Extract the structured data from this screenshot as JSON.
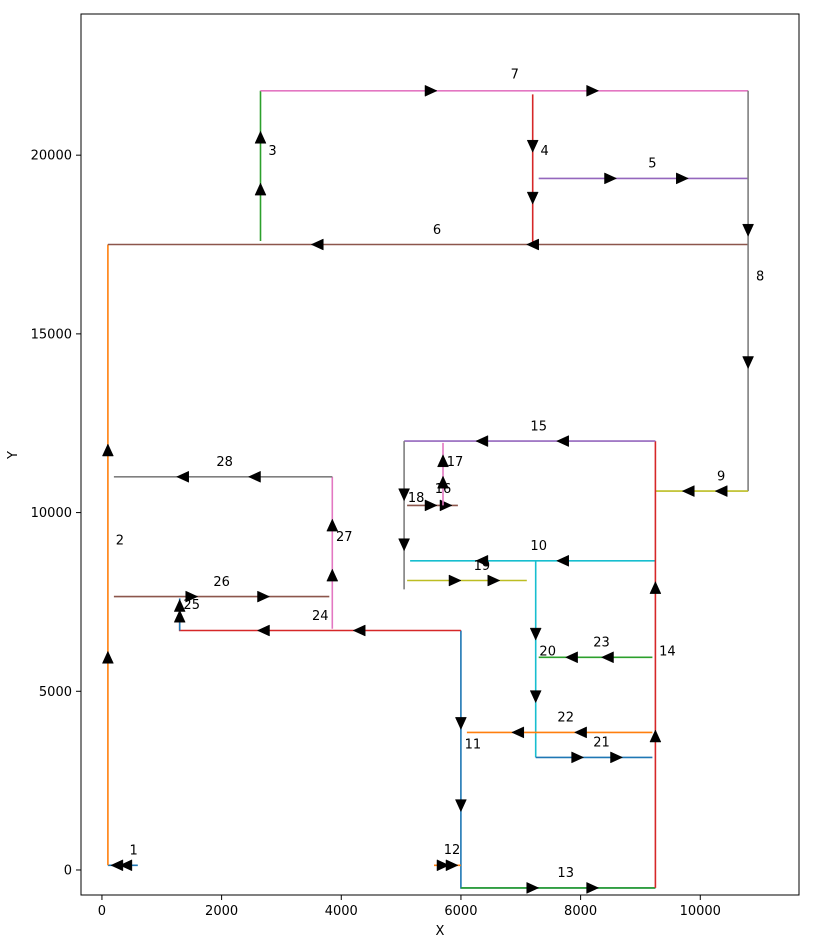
{
  "chart_data": {
    "type": "line",
    "title": "",
    "xlabel": "X",
    "ylabel": "Y",
    "xlim": [
      -350,
      11650
    ],
    "ylim": [
      -700,
      23950
    ],
    "xticks": [
      0,
      2000,
      4000,
      6000,
      8000,
      10000
    ],
    "xtick_labels": [
      "0",
      "2000",
      "4000",
      "6000",
      "8000",
      "10000"
    ],
    "yticks": [
      0,
      5000,
      10000,
      15000,
      20000
    ],
    "ytick_labels": [
      "0",
      "5000",
      "10000",
      "15000",
      "20000"
    ],
    "grid": false,
    "series": [
      {
        "name": "1",
        "color": "#1f77b4",
        "points": [
          [
            100,
            130
          ],
          [
            600,
            130
          ]
        ],
        "arrows": [
          [
            250,
            130,
            "left"
          ],
          [
            400,
            130,
            "left"
          ]
        ],
        "label_at": [
          530,
          430
        ]
      },
      {
        "name": "2",
        "color": "#ff7f0e",
        "points": [
          [
            100,
            130
          ],
          [
            100,
            17500
          ]
        ],
        "arrows": [
          [
            100,
            5950,
            "up"
          ],
          [
            100,
            11750,
            "up"
          ]
        ],
        "label_at": [
          300,
          9100
        ]
      },
      {
        "name": "3",
        "color": "#2ca02c",
        "points": [
          [
            2650,
            17600
          ],
          [
            2650,
            21800
          ]
        ],
        "arrows": [
          [
            2650,
            19050,
            "up"
          ],
          [
            2650,
            20500,
            "up"
          ]
        ],
        "label_at": [
          2850,
          20000
        ]
      },
      {
        "name": "4",
        "color": "#d62728",
        "points": [
          [
            7200,
            21700
          ],
          [
            7200,
            17500
          ]
        ],
        "arrows": [
          [
            7200,
            20250,
            "down"
          ],
          [
            7200,
            18800,
            "down"
          ]
        ],
        "label_at": [
          7400,
          20000
        ]
      },
      {
        "name": "5",
        "color": "#9467bd",
        "points": [
          [
            7300,
            19350
          ],
          [
            10800,
            19350
          ]
        ],
        "arrows": [
          [
            8500,
            19350,
            "right"
          ],
          [
            9700,
            19350,
            "right"
          ]
        ],
        "label_at": [
          9200,
          19650
        ]
      },
      {
        "name": "6",
        "color": "#8c564b",
        "points": [
          [
            10800,
            17500
          ],
          [
            100,
            17500
          ]
        ],
        "arrows": [
          [
            7200,
            17500,
            "left"
          ],
          [
            3600,
            17500,
            "left"
          ]
        ],
        "label_at": [
          5600,
          17800
        ]
      },
      {
        "name": "7",
        "color": "#e377c2",
        "points": [
          [
            2650,
            21800
          ],
          [
            10800,
            21800
          ]
        ],
        "arrows": [
          [
            5500,
            21800,
            "right"
          ],
          [
            8200,
            21800,
            "right"
          ]
        ],
        "label_at": [
          6900,
          22150
        ]
      },
      {
        "name": "8",
        "color": "#7f7f7f",
        "points": [
          [
            10800,
            21800
          ],
          [
            10800,
            10600
          ]
        ],
        "arrows": [
          [
            10800,
            17900,
            "down"
          ],
          [
            10800,
            14200,
            "down"
          ]
        ],
        "label_at": [
          11000,
          16500
        ]
      },
      {
        "name": "9",
        "color": "#bcbd22",
        "points": [
          [
            10800,
            10600
          ],
          [
            9250,
            10600
          ]
        ],
        "arrows": [
          [
            10350,
            10600,
            "left"
          ],
          [
            9800,
            10600,
            "left"
          ]
        ],
        "label_at": [
          10350,
          10900
        ]
      },
      {
        "name": "10",
        "color": "#17becf",
        "points": [
          [
            9250,
            8650
          ],
          [
            5150,
            8650
          ]
        ],
        "arrows": [
          [
            7700,
            8650,
            "left"
          ],
          [
            6350,
            8650,
            "left"
          ]
        ],
        "label_at": [
          7300,
          8950
        ]
      },
      {
        "name": "11",
        "color": "#1f77b4",
        "points": [
          [
            6000,
            6700
          ],
          [
            6000,
            -500
          ],
          [
            9250,
            -500
          ]
        ],
        "arrows": [
          [
            6000,
            4100,
            "down"
          ],
          [
            6000,
            1800,
            "down"
          ]
        ],
        "label_at": [
          6200,
          3400
        ]
      },
      {
        "name": "12",
        "color": "#ff7f0e",
        "points": [
          [
            5550,
            130
          ],
          [
            6000,
            130
          ]
        ],
        "arrows": [
          [
            5700,
            130,
            "right"
          ],
          [
            5850,
            130,
            "right"
          ]
        ],
        "label_at": [
          5850,
          450
        ]
      },
      {
        "name": "13",
        "color": "#2ca02c",
        "points": [
          [
            6000,
            -500
          ],
          [
            9250,
            -500
          ]
        ],
        "arrows": [
          [
            7200,
            -500,
            "right"
          ],
          [
            8200,
            -500,
            "right"
          ]
        ],
        "label_at": [
          7750,
          -200
        ]
      },
      {
        "name": "14",
        "color": "#d62728",
        "points": [
          [
            9250,
            -500
          ],
          [
            9250,
            12000
          ]
        ],
        "arrows": [
          [
            9250,
            3750,
            "up"
          ],
          [
            9250,
            7900,
            "up"
          ]
        ],
        "label_at": [
          9450,
          6000
        ]
      },
      {
        "name": "15",
        "color": "#9467bd",
        "points": [
          [
            9250,
            12000
          ],
          [
            5050,
            12000
          ]
        ],
        "arrows": [
          [
            7700,
            12000,
            "left"
          ],
          [
            6350,
            12000,
            "left"
          ]
        ],
        "label_at": [
          7300,
          12300
        ]
      },
      {
        "name": "16",
        "color": "#8c564b",
        "points": [
          [
            5100,
            10200
          ],
          [
            5950,
            10200
          ]
        ],
        "arrows": [
          [
            5500,
            10200,
            "right"
          ],
          [
            5750,
            10200,
            "right"
          ]
        ],
        "label_at": [
          5700,
          10550
        ]
      },
      {
        "name": "17",
        "color": "#e377c2",
        "points": [
          [
            5700,
            10200
          ],
          [
            5700,
            11950
          ]
        ],
        "arrows": [
          [
            5700,
            10850,
            "up"
          ],
          [
            5700,
            11450,
            "up"
          ]
        ],
        "label_at": [
          5900,
          11300
        ]
      },
      {
        "name": "18",
        "color": "#7f7f7f",
        "points": [
          [
            5050,
            12000
          ],
          [
            5050,
            7850
          ]
        ],
        "arrows": [
          [
            5050,
            10500,
            "down"
          ],
          [
            5050,
            9100,
            "down"
          ]
        ],
        "label_at": [
          5250,
          10300
        ]
      },
      {
        "name": "19",
        "color": "#bcbd22",
        "points": [
          [
            5100,
            8100
          ],
          [
            7100,
            8100
          ]
        ],
        "arrows": [
          [
            5900,
            8100,
            "right"
          ],
          [
            6550,
            8100,
            "right"
          ]
        ],
        "label_at": [
          6350,
          8400
        ]
      },
      {
        "name": "20",
        "color": "#17becf",
        "points": [
          [
            7250,
            8650
          ],
          [
            7250,
            3150
          ]
        ],
        "arrows": [
          [
            7250,
            6600,
            "down"
          ],
          [
            7250,
            4850,
            "down"
          ]
        ],
        "label_at": [
          7450,
          6000
        ]
      },
      {
        "name": "21",
        "color": "#1f77b4",
        "points": [
          [
            7250,
            3150
          ],
          [
            9200,
            3150
          ]
        ],
        "arrows": [
          [
            7950,
            3150,
            "right"
          ],
          [
            8600,
            3150,
            "right"
          ]
        ],
        "label_at": [
          8350,
          3450
        ]
      },
      {
        "name": "22",
        "color": "#ff7f0e",
        "points": [
          [
            9200,
            3850
          ],
          [
            6100,
            3850
          ]
        ],
        "arrows": [
          [
            8000,
            3850,
            "left"
          ],
          [
            6950,
            3850,
            "left"
          ]
        ],
        "label_at": [
          7750,
          4150
        ]
      },
      {
        "name": "23",
        "color": "#2ca02c",
        "points": [
          [
            9200,
            5950
          ],
          [
            7300,
            5950
          ]
        ],
        "arrows": [
          [
            8450,
            5950,
            "left"
          ],
          [
            7850,
            5950,
            "left"
          ]
        ],
        "label_at": [
          8350,
          6250
        ]
      },
      {
        "name": "24",
        "color": "#d62728",
        "points": [
          [
            6000,
            6700
          ],
          [
            1300,
            6700
          ],
          [
            1300,
            7500
          ]
        ],
        "arrows": [
          [
            4300,
            6700,
            "left"
          ],
          [
            2700,
            6700,
            "left"
          ]
        ],
        "label_at": [
          3650,
          7000
        ]
      },
      {
        "name": "25",
        "color": "#1f77b4",
        "points": [
          [
            1300,
            6700
          ],
          [
            1300,
            7600
          ]
        ],
        "arrows": [
          [
            1300,
            7100,
            "up"
          ],
          [
            1300,
            7400,
            "up"
          ]
        ],
        "label_at": [
          1500,
          7300
        ]
      },
      {
        "name": "26",
        "color": "#8c564b",
        "points": [
          [
            200,
            7650
          ],
          [
            3800,
            7650
          ]
        ],
        "arrows": [
          [
            1500,
            7650,
            "right"
          ],
          [
            2700,
            7650,
            "right"
          ]
        ],
        "label_at": [
          2000,
          7950
        ]
      },
      {
        "name": "27",
        "color": "#e377c2",
        "points": [
          [
            3850,
            6750
          ],
          [
            3850,
            11000
          ]
        ],
        "arrows": [
          [
            3850,
            8250,
            "up"
          ],
          [
            3850,
            9650,
            "up"
          ]
        ],
        "label_at": [
          4050,
          9200
        ]
      },
      {
        "name": "28",
        "color": "#7f7f7f",
        "points": [
          [
            3850,
            11000
          ],
          [
            200,
            11000
          ]
        ],
        "arrows": [
          [
            2550,
            11000,
            "left"
          ],
          [
            1350,
            11000,
            "left"
          ]
        ],
        "label_at": [
          2050,
          11300
        ]
      }
    ]
  }
}
